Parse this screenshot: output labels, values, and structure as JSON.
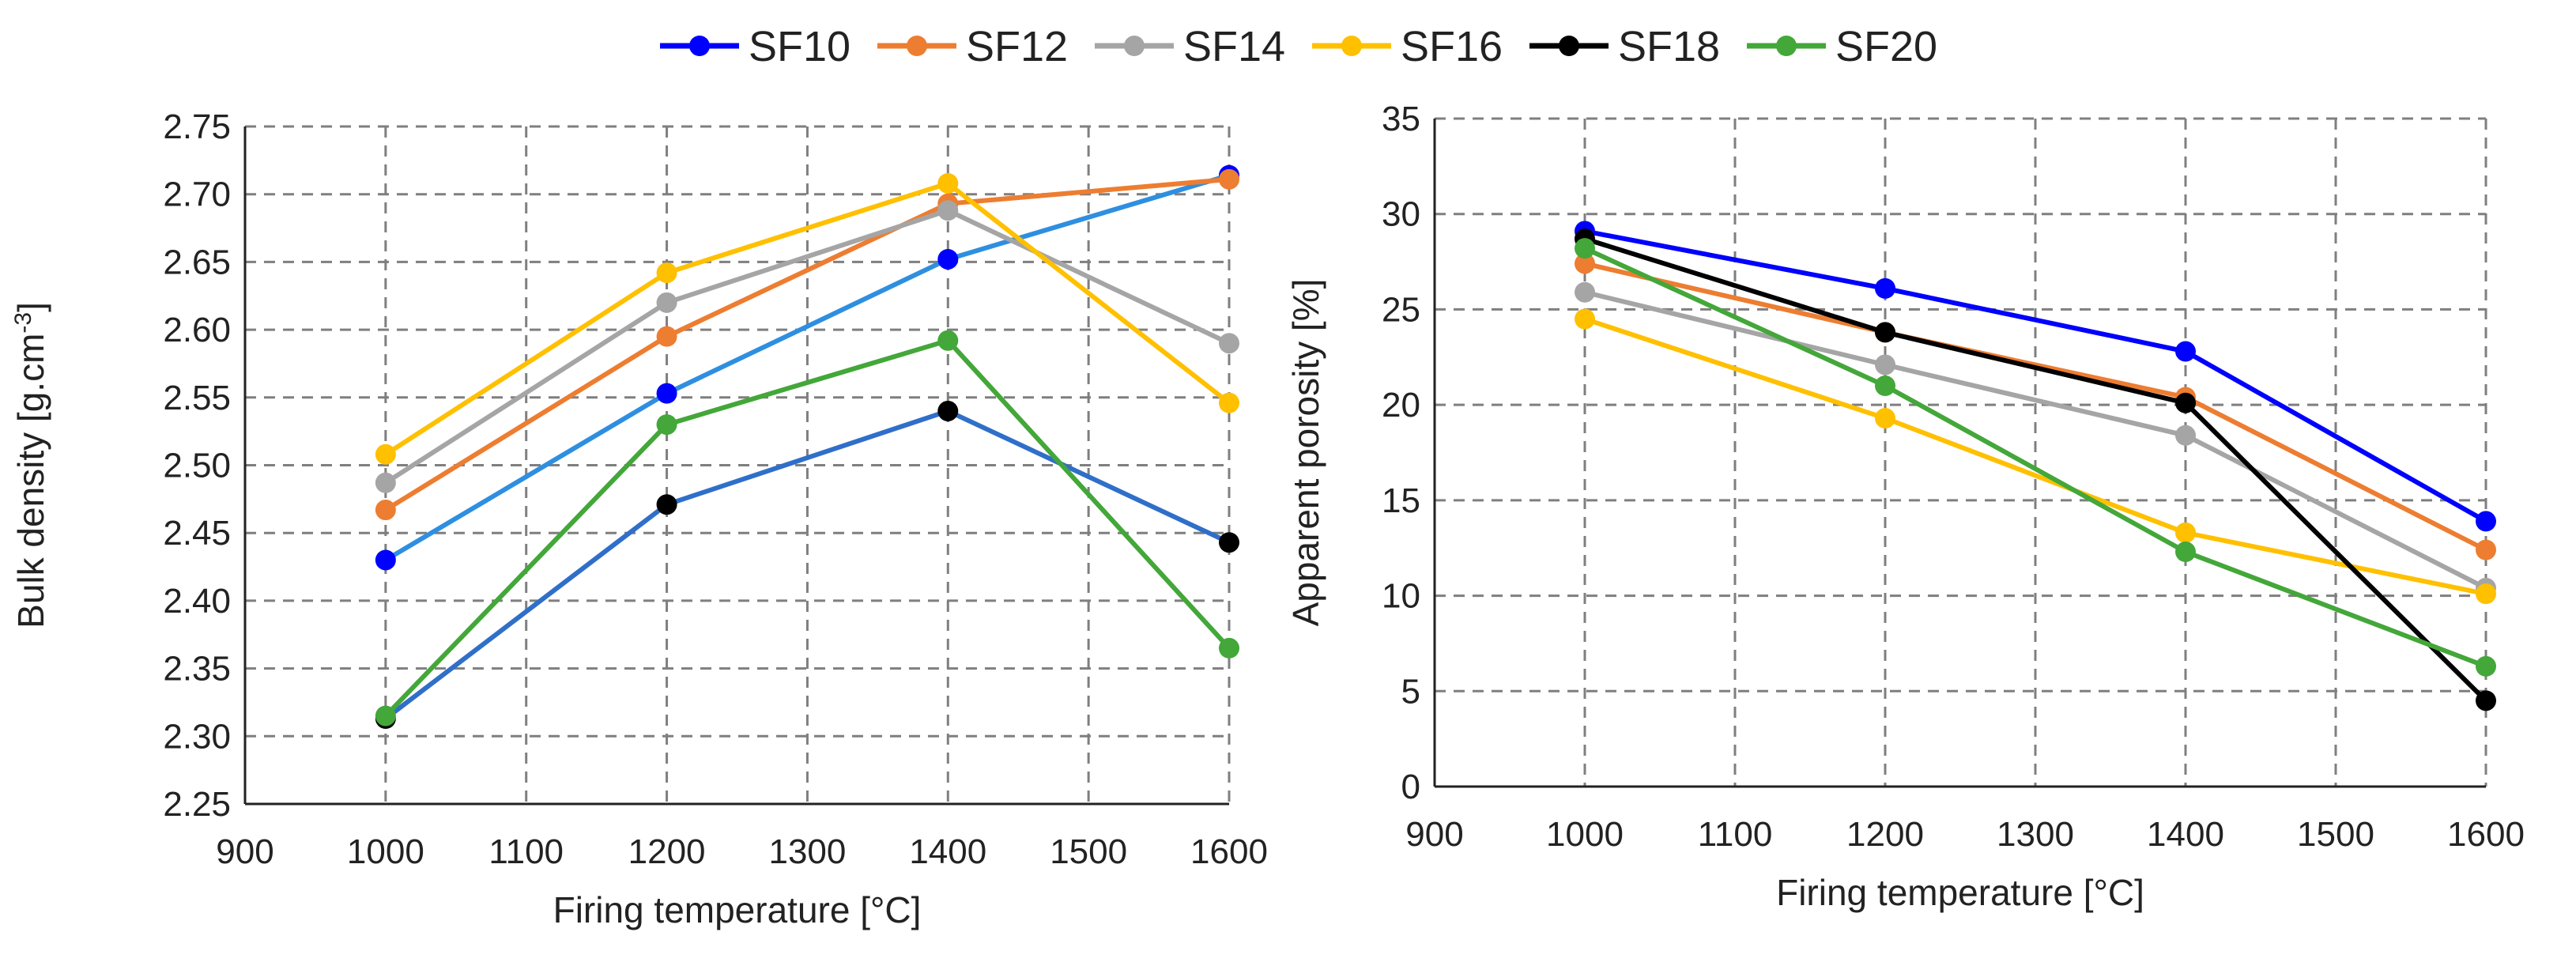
{
  "legend": [
    {
      "name": "SF10",
      "color": "#0000FF"
    },
    {
      "name": "SF12",
      "color": "#ED7D31"
    },
    {
      "name": "SF14",
      "color": "#A5A5A5"
    },
    {
      "name": "SF16",
      "color": "#FFC000"
    },
    {
      "name": "SF18",
      "color": "#000000"
    },
    {
      "name": "SF20",
      "color": "#43A739"
    }
  ],
  "chart_data": [
    {
      "type": "line",
      "title": "",
      "xlabel": "Firing temperature [°C]",
      "ylabel": "Bulk density [g.cm",
      "ylabel_sup": "-3",
      "ylabel_tail": "]",
      "x": [
        1000,
        1200,
        1400,
        1600
      ],
      "xlim": [
        900,
        1600
      ],
      "xticks": [
        "900",
        "1000",
        "1100",
        "1200",
        "1300",
        "1400",
        "1500",
        "1600"
      ],
      "ylim": [
        2.25,
        2.75
      ],
      "yticks": [
        "2.25",
        "2.30",
        "2.35",
        "2.40",
        "2.45",
        "2.50",
        "2.55",
        "2.60",
        "2.65",
        "2.70",
        "2.75"
      ],
      "grid": true,
      "series": [
        {
          "name": "SF10",
          "color": "#0000FF",
          "line_color": "#2E8FE0",
          "values": [
            2.43,
            2.553,
            2.652,
            2.714
          ]
        },
        {
          "name": "SF12",
          "color": "#ED7D31",
          "line_color": "#ED7D31",
          "values": [
            2.467,
            2.595,
            2.693,
            2.711
          ]
        },
        {
          "name": "SF14",
          "color": "#A5A5A5",
          "line_color": "#A5A5A5",
          "values": [
            2.487,
            2.62,
            2.688,
            2.59
          ]
        },
        {
          "name": "SF16",
          "color": "#FFC000",
          "line_color": "#FFC000",
          "values": [
            2.508,
            2.642,
            2.708,
            2.546
          ]
        },
        {
          "name": "SF18",
          "color": "#000000",
          "line_color": "#2F6FC9",
          "values": [
            2.313,
            2.471,
            2.54,
            2.443
          ]
        },
        {
          "name": "SF20",
          "color": "#43A739",
          "line_color": "#43A739",
          "values": [
            2.315,
            2.53,
            2.592,
            2.365
          ]
        }
      ]
    },
    {
      "type": "line",
      "title": "",
      "xlabel": "Firing temperature [°C]",
      "ylabel": "Apparent porosity [%]",
      "x": [
        1000,
        1200,
        1400,
        1600
      ],
      "xlim": [
        900,
        1600
      ],
      "xticks": [
        "900",
        "1000",
        "1100",
        "1200",
        "1300",
        "1400",
        "1500",
        "1600"
      ],
      "ylim": [
        0,
        35
      ],
      "yticks": [
        "0",
        "5",
        "10",
        "15",
        "20",
        "25",
        "30",
        "35"
      ],
      "grid": true,
      "series": [
        {
          "name": "SF10",
          "color": "#0000FF",
          "line_color": "#0000FF",
          "values": [
            29.1,
            26.1,
            22.8,
            13.9
          ]
        },
        {
          "name": "SF12",
          "color": "#ED7D31",
          "line_color": "#ED7D31",
          "values": [
            27.4,
            23.8,
            20.4,
            12.4
          ]
        },
        {
          "name": "SF14",
          "color": "#A5A5A5",
          "line_color": "#A5A5A5",
          "values": [
            25.9,
            22.1,
            18.4,
            10.4
          ]
        },
        {
          "name": "SF16",
          "color": "#FFC000",
          "line_color": "#FFC000",
          "values": [
            24.5,
            19.3,
            13.3,
            10.1
          ]
        },
        {
          "name": "SF18",
          "color": "#000000",
          "line_color": "#000000",
          "values": [
            28.7,
            23.8,
            20.1,
            4.5
          ]
        },
        {
          "name": "SF20",
          "color": "#43A739",
          "line_color": "#43A739",
          "values": [
            28.2,
            21.0,
            12.3,
            6.3
          ]
        }
      ]
    }
  ]
}
